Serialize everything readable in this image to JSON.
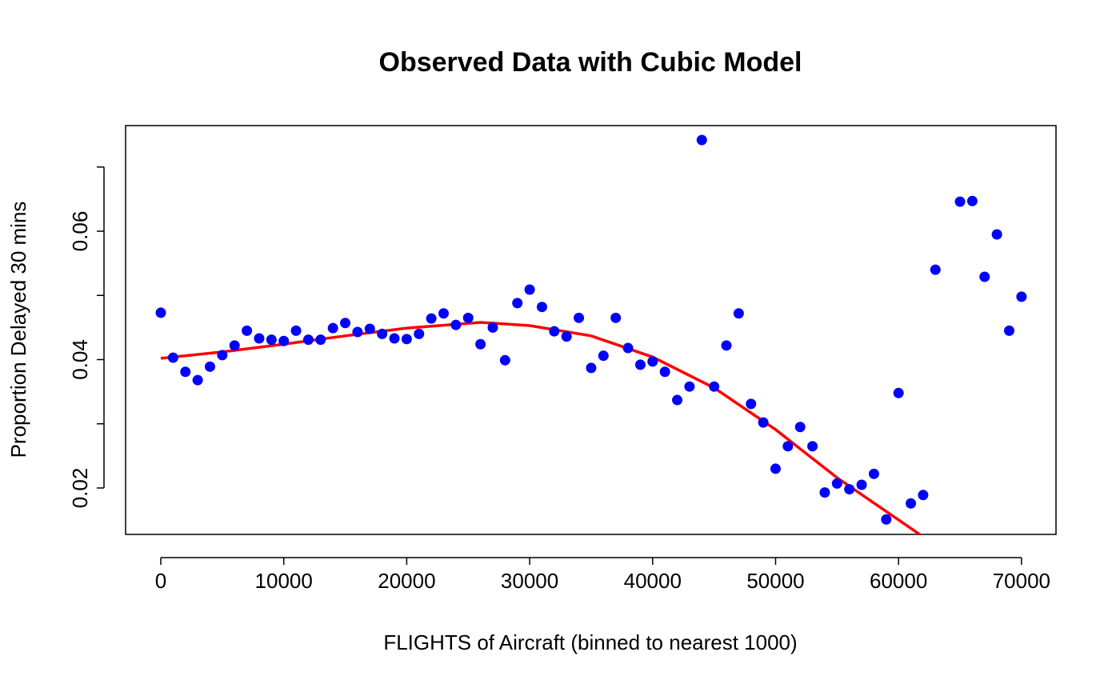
{
  "chart_data": {
    "type": "scatter",
    "title": "Observed Data with Cubic Model",
    "x_label": "FLIGHTS of Aircraft (binned to nearest 1000)",
    "y_label": "Proportion Delayed 30 mins",
    "x": [
      0,
      1000,
      2000,
      3000,
      4000,
      5000,
      6000,
      7000,
      8000,
      9000,
      10000,
      11000,
      12000,
      13000,
      14000,
      15000,
      16000,
      17000,
      18000,
      19000,
      20000,
      21000,
      22000,
      23000,
      24000,
      25000,
      26000,
      27000,
      28000,
      29000,
      30000,
      31000,
      32000,
      33000,
      34000,
      35000,
      36000,
      37000,
      38000,
      39000,
      40000,
      41000,
      42000,
      43000,
      44000,
      45000,
      46000,
      47000,
      48000,
      49000,
      50000,
      51000,
      52000,
      53000,
      54000,
      55000,
      56000,
      57000,
      58000,
      59000,
      60000,
      61000,
      62000,
      63000,
      64000,
      65000,
      66000,
      67000,
      68000,
      69000,
      70000
    ],
    "series": [
      {
        "color": "#0000ff",
        "values": [
          0.0473,
          0.0403,
          0.0381,
          0.0368,
          0.0389,
          0.0407,
          0.0422,
          0.0445,
          0.0433,
          0.0431,
          0.0429,
          0.0445,
          0.0431,
          0.0431,
          0.0449,
          0.0457,
          0.0443,
          0.0448,
          0.044,
          0.0433,
          0.0432,
          0.044,
          0.0464,
          0.0472,
          0.0454,
          0.0465,
          0.0424,
          0.045,
          0.0399,
          0.0488,
          0.0509,
          0.0482,
          0.0444,
          0.0436,
          0.0465,
          0.0387,
          0.0406,
          0.0465,
          0.0418,
          0.0392,
          0.0397,
          0.0381,
          0.0337,
          0.0358,
          0.0742,
          0.0358,
          0.0422,
          0.0472,
          0.0331,
          0.0302,
          0.023,
          0.0265,
          0.0295,
          0.0265,
          0.0193,
          0.0207,
          0.0198,
          0.0205,
          0.0222,
          0.0151,
          0.0348,
          0.0176,
          0.0189,
          0.054,
          null,
          0.0646,
          0.0647,
          0.0529,
          0.0595,
          0.0445,
          0.0498
        ]
      }
    ],
    "fit": {
      "type": "line",
      "color": "#ff0000",
      "x": [
        0,
        5000,
        10000,
        15000,
        20000,
        26000,
        30000,
        35000,
        40000,
        45000,
        50000,
        55000,
        62000
      ],
      "values": [
        0.0402,
        0.0412,
        0.0424,
        0.0437,
        0.0449,
        0.0458,
        0.0453,
        0.0437,
        0.0404,
        0.0356,
        0.0291,
        0.0216,
        0.0124
      ]
    },
    "xlim": [
      -2863,
      72806
    ],
    "ylim": [
      0.01277,
      0.07645
    ],
    "xticks": [
      0,
      10000,
      20000,
      30000,
      40000,
      50000,
      60000,
      70000
    ],
    "yticks": [
      0.02,
      0.04,
      0.06
    ],
    "yminor_ticks": [
      0.03,
      0.05,
      0.07
    ]
  }
}
